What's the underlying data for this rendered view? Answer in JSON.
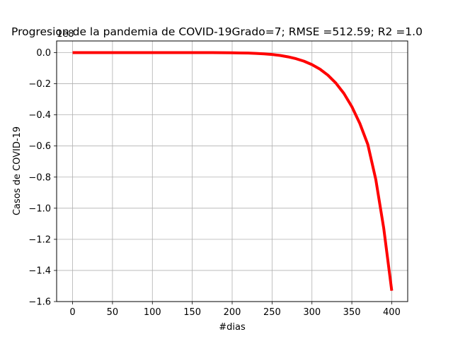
{
  "chart_data": {
    "type": "line",
    "title": "Progresion de la pandemia de COVID-19Grado=7; RMSE =512.59; R2 =1.0",
    "xlabel": "#dias",
    "ylabel": "Casos de  COVID-19",
    "offset_text": "1e8",
    "xlim": [
      -20,
      420
    ],
    "ylim": [
      -1.6,
      0.075
    ],
    "x_ticks": [
      0,
      50,
      100,
      150,
      200,
      250,
      300,
      350,
      400
    ],
    "y_ticks": [
      0.0,
      -0.2,
      -0.4,
      -0.6,
      -0.8,
      -1.0,
      -1.2,
      -1.4,
      -1.6
    ],
    "y_tick_labels": [
      "0.0",
      "−0.2",
      "−0.4",
      "−0.6",
      "−0.8",
      "−1.0",
      "−1.2",
      "−1.4",
      "−1.6"
    ],
    "grid": true,
    "series": [
      {
        "color": "#ff0000",
        "x": [
          0,
          25,
          50,
          75,
          100,
          125,
          150,
          175,
          200,
          210,
          220,
          230,
          240,
          250,
          260,
          270,
          280,
          290,
          300,
          310,
          320,
          330,
          340,
          350,
          360,
          370,
          380,
          390,
          400
        ],
        "y": [
          0,
          0,
          0,
          0,
          0,
          0,
          0,
          0,
          -0.001,
          -0.002,
          -0.003,
          -0.005,
          -0.008,
          -0.012,
          -0.018,
          -0.027,
          -0.039,
          -0.055,
          -0.077,
          -0.106,
          -0.145,
          -0.196,
          -0.262,
          -0.347,
          -0.455,
          -0.59,
          -0.815,
          -1.13,
          -1.53
        ]
      }
    ]
  }
}
